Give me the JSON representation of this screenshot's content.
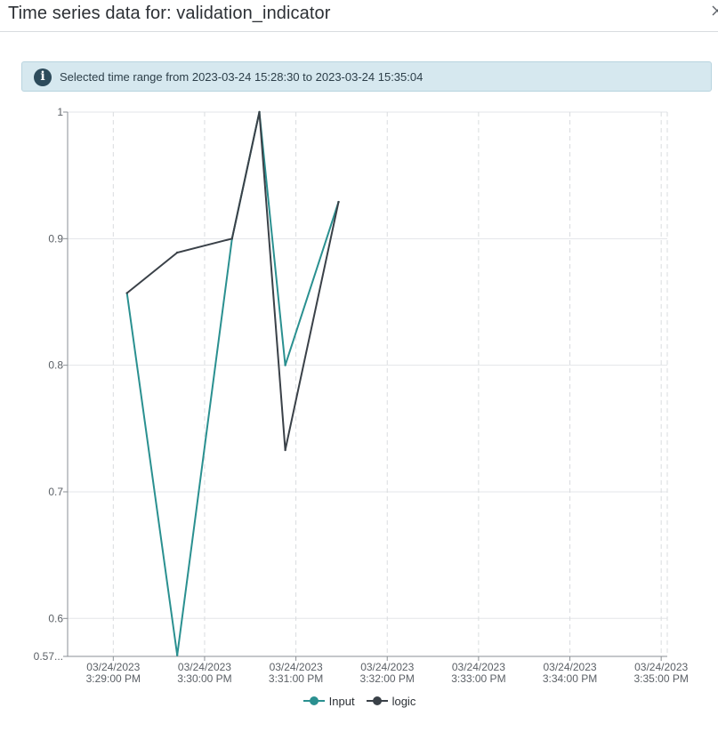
{
  "dialog": {
    "title": "Time series data for: validation_indicator"
  },
  "banner": {
    "text": "Selected time range from 2023-03-24 15:28:30 to 2023-03-24 15:35:04"
  },
  "colors": {
    "input": "#2a9090",
    "logic": "#3a4148",
    "banner_bg": "#d6e8ef",
    "info_icon": "#2d4b5b"
  },
  "legend": [
    {
      "name": "Input",
      "icon": "circle-line-icon",
      "color": "#2a9090"
    },
    {
      "name": "logic",
      "icon": "circle-line-icon",
      "color": "#3a4148"
    }
  ],
  "chart_data": {
    "type": "line",
    "title": "",
    "xlabel": "",
    "ylabel": "",
    "grid": true,
    "legend_position": "bottom",
    "ylim": [
      0.57,
      1.0
    ],
    "xlim": [
      "2023-03-24 15:28:30",
      "2023-03-24 15:35:04"
    ],
    "y_ticks": [
      {
        "value": 0.57,
        "label": "0.57..."
      },
      {
        "value": 0.6,
        "label": "0.6"
      },
      {
        "value": 0.7,
        "label": "0.7"
      },
      {
        "value": 0.8,
        "label": "0.8"
      },
      {
        "value": 0.9,
        "label": "0.9"
      },
      {
        "value": 1.0,
        "label": "1"
      }
    ],
    "x_ticks": [
      {
        "value": "2023-03-24 15:29:00",
        "date": "03/24/2023",
        "time": "3:29:00 PM"
      },
      {
        "value": "2023-03-24 15:30:00",
        "date": "03/24/2023",
        "time": "3:30:00 PM"
      },
      {
        "value": "2023-03-24 15:31:00",
        "date": "03/24/2023",
        "time": "3:31:00 PM"
      },
      {
        "value": "2023-03-24 15:32:00",
        "date": "03/24/2023",
        "time": "3:32:00 PM"
      },
      {
        "value": "2023-03-24 15:33:00",
        "date": "03/24/2023",
        "time": "3:33:00 PM"
      },
      {
        "value": "2023-03-24 15:34:00",
        "date": "03/24/2023",
        "time": "3:34:00 PM"
      },
      {
        "value": "2023-03-24 15:35:00",
        "date": "03/24/2023",
        "time": "3:35:00 PM"
      }
    ],
    "series": [
      {
        "name": "Input",
        "points": [
          {
            "x": "2023-03-24 15:29:09",
            "y": 0.857
          },
          {
            "x": "2023-03-24 15:29:42",
            "y": 0.571
          },
          {
            "x": "2023-03-24 15:30:18",
            "y": 0.9
          },
          {
            "x": "2023-03-24 15:30:36",
            "y": 1.0
          },
          {
            "x": "2023-03-24 15:30:53",
            "y": 0.8
          },
          {
            "x": "2023-03-24 15:31:28",
            "y": 0.929
          }
        ]
      },
      {
        "name": "logic",
        "points": [
          {
            "x": "2023-03-24 15:29:09",
            "y": 0.857
          },
          {
            "x": "2023-03-24 15:29:42",
            "y": 0.889
          },
          {
            "x": "2023-03-24 15:30:18",
            "y": 0.9
          },
          {
            "x": "2023-03-24 15:30:36",
            "y": 1.0
          },
          {
            "x": "2023-03-24 15:30:53",
            "y": 0.733
          },
          {
            "x": "2023-03-24 15:31:28",
            "y": 0.929
          }
        ]
      }
    ]
  }
}
